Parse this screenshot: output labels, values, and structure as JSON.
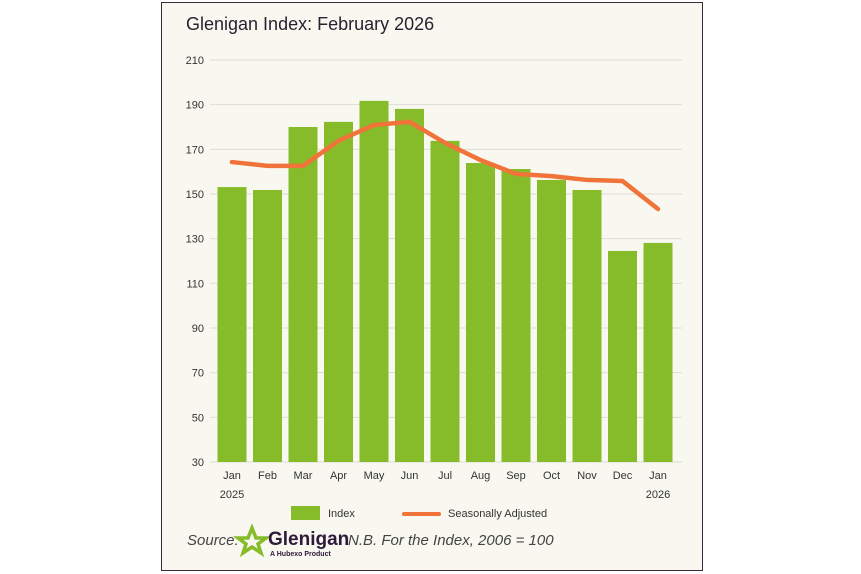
{
  "chart_data": {
    "type": "bar",
    "title": "Glenigan Index: February 2026",
    "categories": [
      "Jan",
      "Feb",
      "Mar",
      "Apr",
      "May",
      "Jun",
      "Jul",
      "Aug",
      "Sep",
      "Oct",
      "Nov",
      "Dec",
      "Jan"
    ],
    "year_labels": {
      "first": "2025",
      "last": "2026"
    },
    "series": [
      {
        "name": "Index",
        "type": "bar",
        "color": "#86bb2a",
        "values": [
          153.1,
          151.8,
          180,
          182.3,
          191.7,
          188.1,
          173.8,
          163.9,
          161.2,
          156.3,
          151.8,
          124.5,
          128.1
        ]
      },
      {
        "name": "Seasonally Adjusted",
        "type": "line",
        "color": "#f0743a",
        "values": [
          164.3,
          162.6,
          162.6,
          173.8,
          180.9,
          182.3,
          172.9,
          165.2,
          159,
          158,
          156.3,
          155.8,
          143.3
        ]
      }
    ],
    "ylim": [
      30,
      210
    ],
    "yticks": [
      30,
      50,
      70,
      90,
      110,
      130,
      150,
      170,
      190,
      210
    ],
    "grid": true,
    "legend": "bottom",
    "xlabel": "",
    "ylabel": ""
  },
  "footer": {
    "source_label": "Source:",
    "logo_text": "Glenigan",
    "logo_sub": "A Hubexo Product",
    "note": "N.B. For the Index, 2006 = 100"
  }
}
